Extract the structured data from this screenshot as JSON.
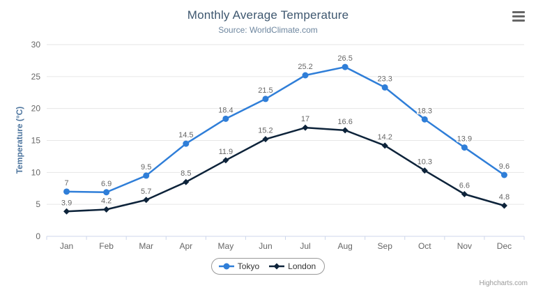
{
  "header": {
    "title": "Monthly Average Temperature",
    "subtitle": "Source: WorldClimate.com"
  },
  "menu": {
    "icon": "hamburger-menu-icon"
  },
  "credit": "Highcharts.com",
  "colors": {
    "title": "#3E576F",
    "subtitle": "#6D869F",
    "axis_label": "#666666",
    "axis_title": "#4d759e",
    "grid": "#e6e6e6",
    "axis_line": "#ccd6eb",
    "data_label": "#666666",
    "legend_text": "#333333",
    "legend_border": "#999999",
    "credit": "#999999",
    "menu_icon": "#666666",
    "background": "#ffffff"
  },
  "chart_data": {
    "type": "line",
    "title": "Monthly Average Temperature",
    "subtitle": "Source: WorldClimate.com",
    "categories": [
      "Jan",
      "Feb",
      "Mar",
      "Apr",
      "May",
      "Jun",
      "Jul",
      "Aug",
      "Sep",
      "Oct",
      "Nov",
      "Dec"
    ],
    "series": [
      {
        "name": "Tokyo",
        "color": "#2f7ed8",
        "marker": "circle",
        "values": [
          7,
          6.9,
          9.5,
          14.5,
          18.4,
          21.5,
          25.2,
          26.5,
          23.3,
          18.3,
          13.9,
          9.6
        ]
      },
      {
        "name": "London",
        "color": "#0d233a",
        "marker": "diamond",
        "values": [
          3.9,
          4.2,
          5.7,
          8.5,
          11.9,
          15.2,
          17,
          16.6,
          14.2,
          10.3,
          6.6,
          4.8
        ]
      }
    ],
    "xlabel": "",
    "ylabel": "Temperature (°C)",
    "ylim": [
      0,
      30
    ],
    "tick_interval": 5,
    "grid": true,
    "data_labels": true,
    "legend_position": "bottom"
  }
}
